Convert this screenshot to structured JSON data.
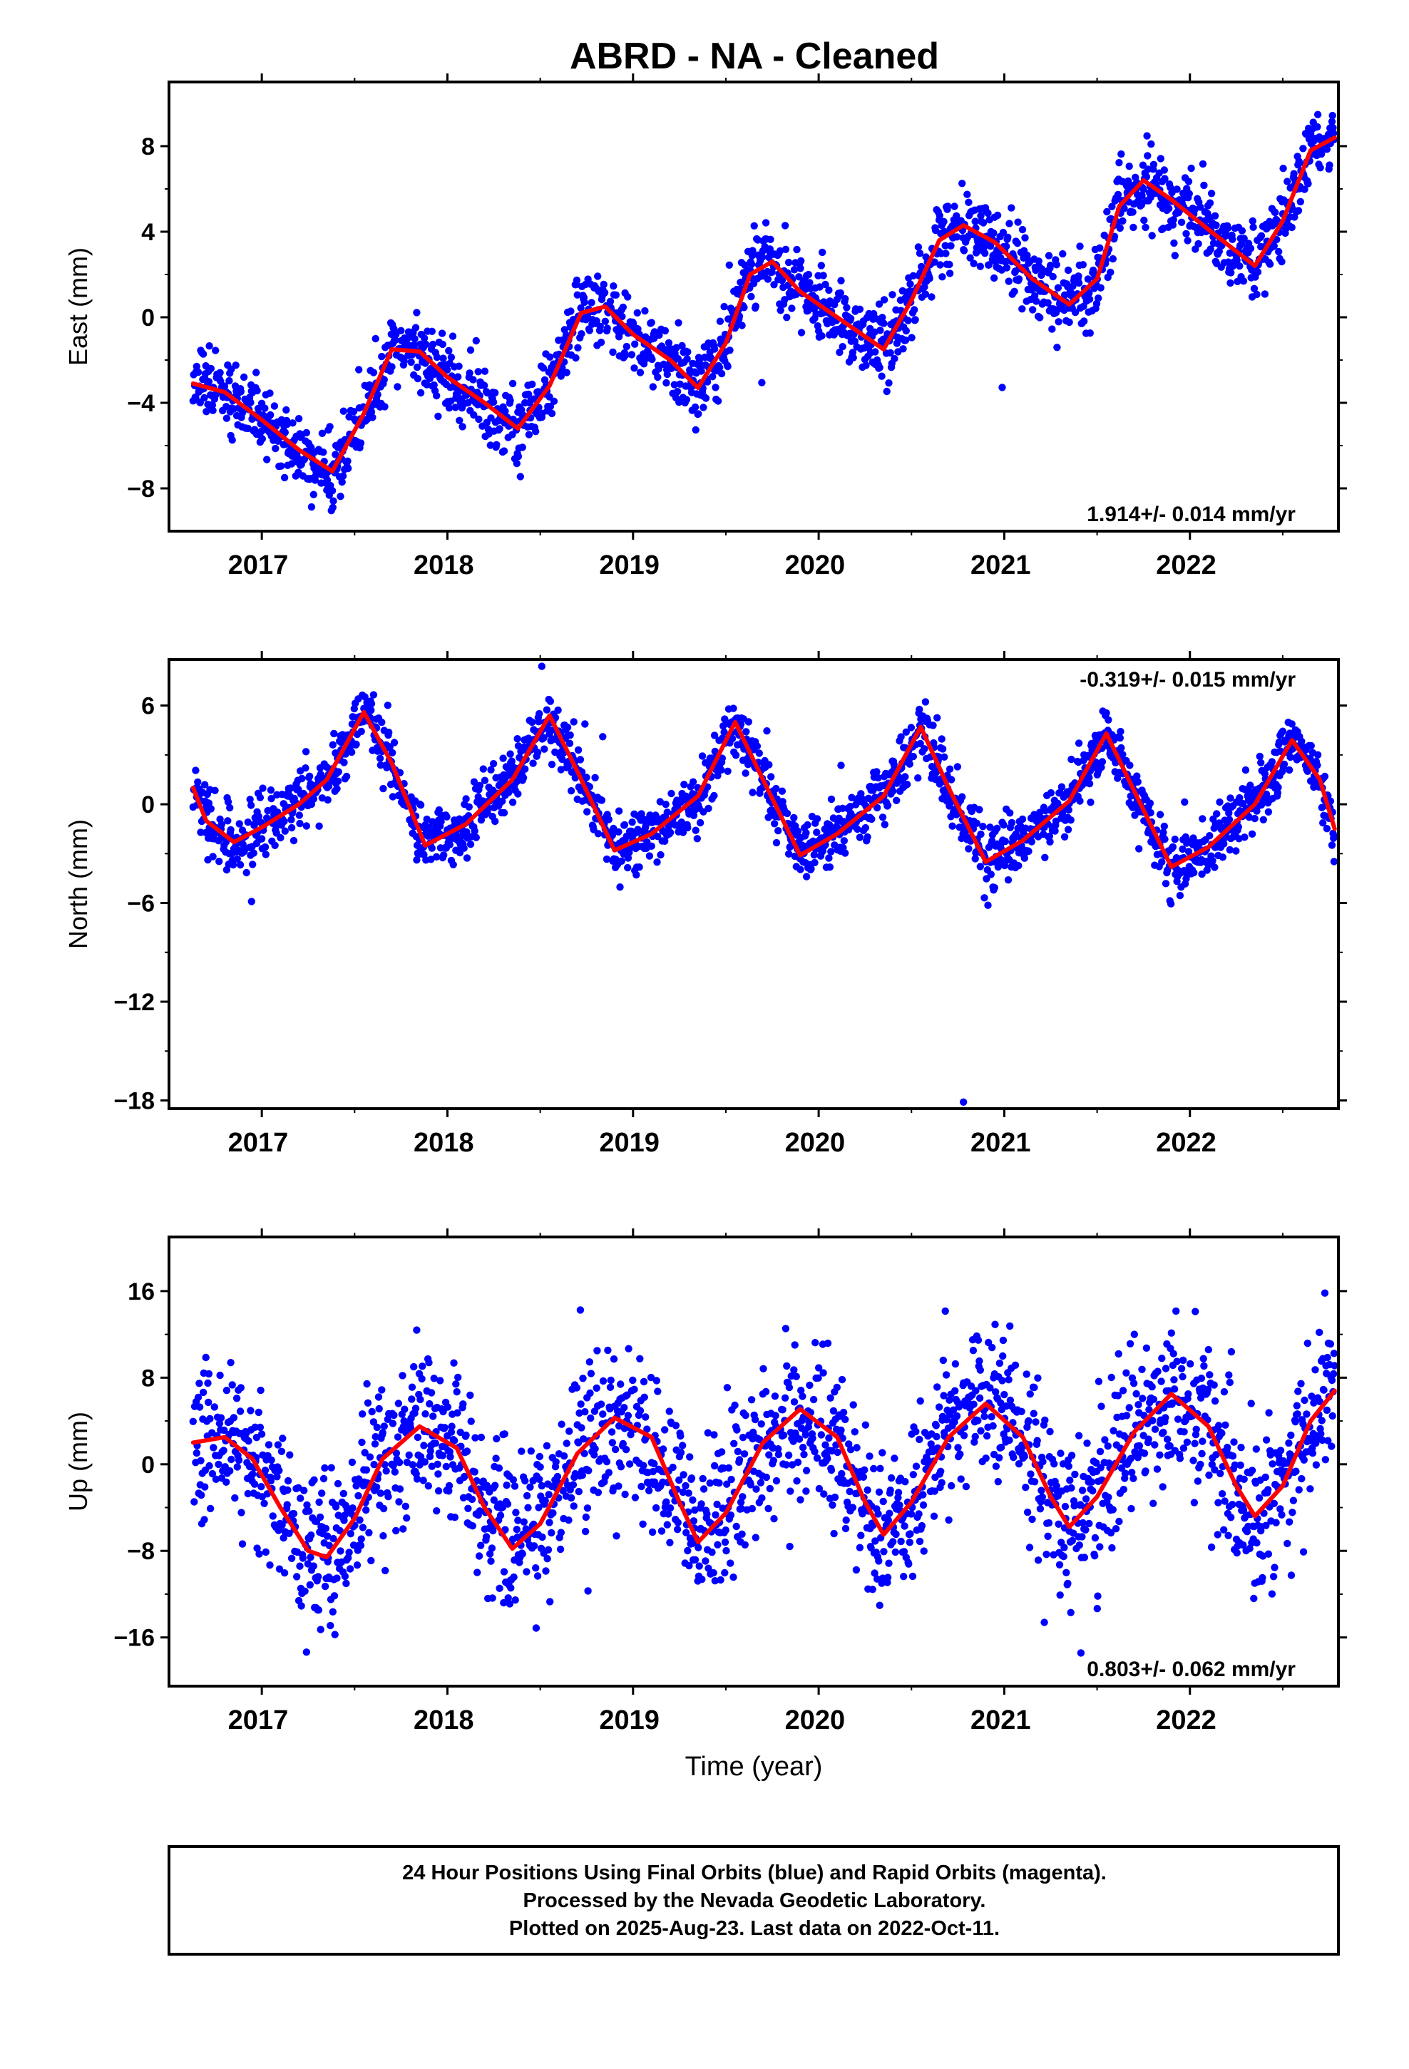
{
  "page_title": "ABRD  - NA - Cleaned",
  "footer": {
    "line1": "24 Hour Positions Using Final Orbits (blue) and Rapid Orbits (magenta).",
    "line2": "Processed by the Nevada Geodetic Laboratory.",
    "line3": "Plotted on 2025-Aug-23. Last data on 2022-Oct-11."
  },
  "colors": {
    "points": "#0000ff",
    "fit": "#ff0000",
    "axes": "#000000"
  },
  "chart_data": [
    {
      "type": "scatter",
      "component": "east",
      "ylabel": "East (mm)",
      "xlabel": "",
      "x_range": [
        2016.5,
        2022.8
      ],
      "ylim": [
        -10,
        11
      ],
      "yticks": [
        -8,
        -4,
        0,
        4,
        8
      ],
      "xticks": [
        2017,
        2018,
        2019,
        2020,
        2021,
        2022
      ],
      "rate_label": "1.914+/- 0.014 mm/yr",
      "rate_position": "bottom-right",
      "data_start": 2016.63,
      "data_end": 2022.78,
      "fit_curve": {
        "x": [
          2016.63,
          2016.8,
          2017.0,
          2017.2,
          2017.38,
          2017.55,
          2017.7,
          2017.85,
          2018.0,
          2018.2,
          2018.38,
          2018.55,
          2018.72,
          2018.85,
          2019.0,
          2019.2,
          2019.35,
          2019.5,
          2019.63,
          2019.75,
          2019.9,
          2020.1,
          2020.35,
          2020.5,
          2020.65,
          2020.78,
          2020.95,
          2021.15,
          2021.35,
          2021.5,
          2021.62,
          2021.75,
          2021.9,
          2022.1,
          2022.35,
          2022.5,
          2022.65,
          2022.78
        ],
        "y": [
          -3.1,
          -3.5,
          -4.8,
          -6.2,
          -7.2,
          -4.5,
          -1.5,
          -1.6,
          -2.8,
          -4.0,
          -5.2,
          -3.2,
          0.2,
          0.5,
          -0.8,
          -2.0,
          -3.3,
          -1.2,
          2.0,
          2.6,
          1.2,
          0.0,
          -1.5,
          0.8,
          3.6,
          4.3,
          3.5,
          1.8,
          0.6,
          1.8,
          5.2,
          6.4,
          5.5,
          4.1,
          2.4,
          4.5,
          7.8,
          8.4
        ]
      },
      "scatter_model": {
        "seasonal_amplitude": 2.2,
        "phase": 2.85,
        "trend": 1.914,
        "noise_sd": 0.85,
        "seed": 11
      }
    },
    {
      "type": "scatter",
      "component": "north",
      "ylabel": "North (mm)",
      "xlabel": "",
      "x_range": [
        2016.5,
        2022.8
      ],
      "ylim": [
        -18.5,
        8.8
      ],
      "yticks": [
        -18,
        -12,
        -6,
        0,
        6
      ],
      "xticks": [
        2017,
        2018,
        2019,
        2020,
        2021,
        2022
      ],
      "rate_label": "-0.319+/- 0.015 mm/yr",
      "rate_position": "top-right",
      "data_start": 2016.63,
      "data_end": 2022.78,
      "fit_curve": {
        "x": [
          2016.63,
          2016.7,
          2016.85,
          2017.0,
          2017.2,
          2017.35,
          2017.55,
          2017.7,
          2017.88,
          2018.1,
          2018.35,
          2018.55,
          2018.7,
          2018.9,
          2019.1,
          2019.35,
          2019.55,
          2019.7,
          2019.9,
          2020.1,
          2020.35,
          2020.55,
          2020.7,
          2020.9,
          2021.1,
          2021.35,
          2021.55,
          2021.7,
          2021.9,
          2022.1,
          2022.35,
          2022.55,
          2022.7,
          2022.78
        ],
        "y": [
          1.0,
          -1.0,
          -2.3,
          -1.4,
          0.0,
          1.5,
          5.6,
          2.5,
          -2.5,
          -1.2,
          1.5,
          5.4,
          2.0,
          -2.8,
          -1.8,
          0.5,
          5.0,
          1.5,
          -3.1,
          -1.8,
          0.5,
          4.7,
          1.0,
          -3.5,
          -2.2,
          0.2,
          4.3,
          0.8,
          -3.8,
          -2.6,
          0.0,
          3.9,
          1.5,
          -1.5
        ]
      },
      "scatter_model": {
        "seasonal_amplitude": 4.0,
        "phase": 1.2,
        "trend": -0.319,
        "noise_sd": 0.9,
        "seed": 23
      },
      "outlier": {
        "x": 2020.78,
        "y": -18.1
      }
    },
    {
      "type": "scatter",
      "component": "up",
      "ylabel": "Up (mm)",
      "xlabel": "Time (year)",
      "x_range": [
        2016.5,
        2022.8
      ],
      "ylim": [
        -20.5,
        21
      ],
      "yticks": [
        -16,
        -8,
        0,
        8,
        16
      ],
      "xticks": [
        2017,
        2018,
        2019,
        2020,
        2021,
        2022
      ],
      "rate_label": "0.803+/- 0.062 mm/yr",
      "rate_position": "bottom-right",
      "data_start": 2016.63,
      "data_end": 2022.78,
      "fit_curve": {
        "x": [
          2016.63,
          2016.8,
          2016.95,
          2017.1,
          2017.25,
          2017.35,
          2017.5,
          2017.65,
          2017.85,
          2018.05,
          2018.2,
          2018.35,
          2018.5,
          2018.7,
          2018.9,
          2019.1,
          2019.25,
          2019.35,
          2019.5,
          2019.7,
          2019.9,
          2020.1,
          2020.25,
          2020.35,
          2020.5,
          2020.7,
          2020.9,
          2021.1,
          2021.25,
          2021.35,
          2021.5,
          2021.7,
          2021.9,
          2022.1,
          2022.25,
          2022.35,
          2022.5,
          2022.65,
          2022.78
        ],
        "y": [
          2.0,
          2.5,
          0.5,
          -4.0,
          -8.0,
          -8.6,
          -5.0,
          0.5,
          3.5,
          1.5,
          -4.0,
          -7.8,
          -5.5,
          1.0,
          4.3,
          2.5,
          -3.5,
          -7.2,
          -4.5,
          2.0,
          5.1,
          2.5,
          -3.5,
          -6.5,
          -3.5,
          2.5,
          5.6,
          2.5,
          -3.0,
          -5.8,
          -3.0,
          3.0,
          6.5,
          3.5,
          -2.0,
          -4.8,
          -2.0,
          4.0,
          6.8
        ]
      },
      "scatter_model": {
        "seasonal_amplitude": 6.0,
        "phase": 2.6,
        "trend": 0.803,
        "noise_sd": 3.6,
        "seed": 37
      }
    }
  ]
}
